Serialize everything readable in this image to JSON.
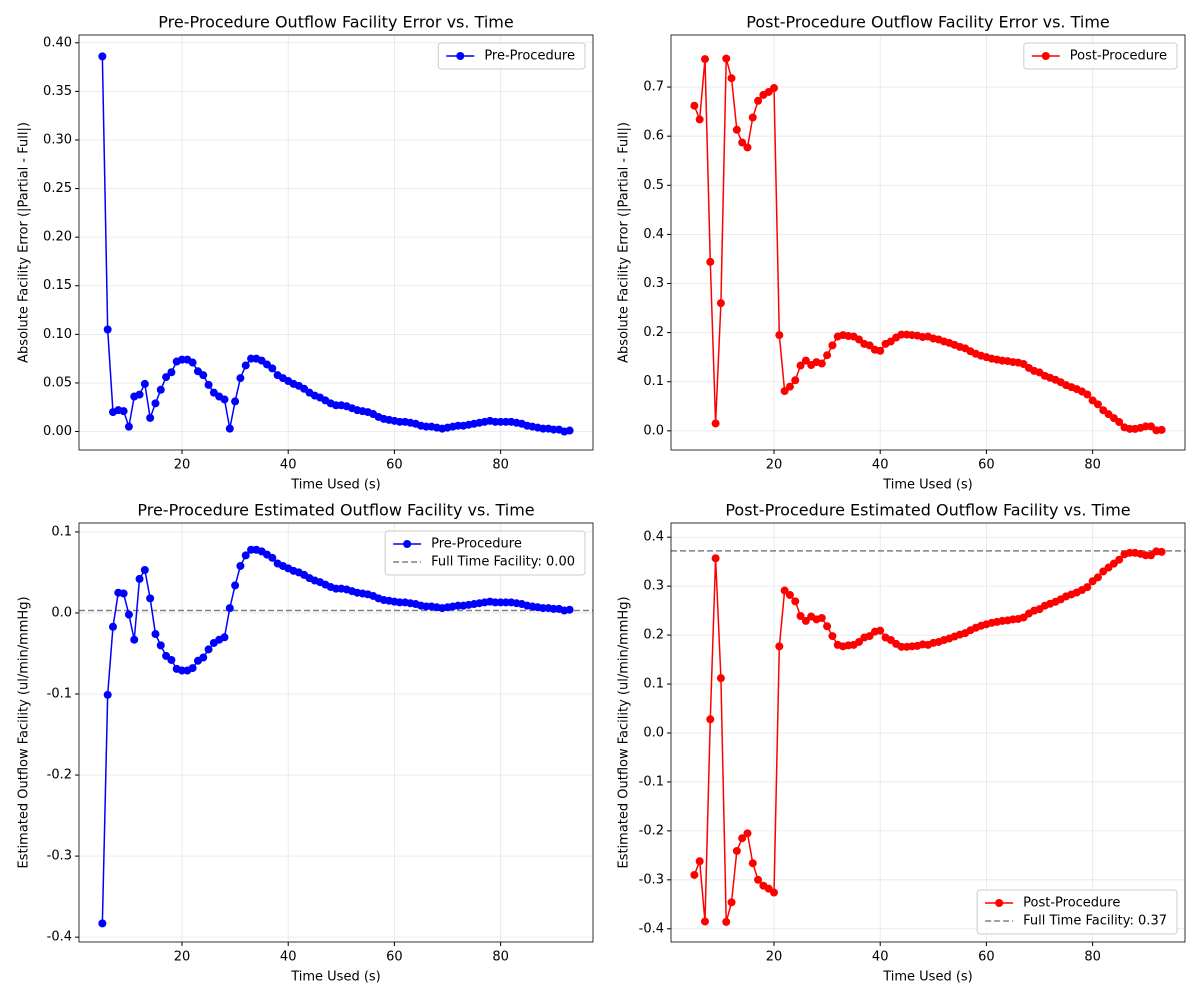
{
  "chart_data": [
    {
      "type": "line",
      "title": "Pre-Procedure Outflow Facility Error vs. Time",
      "x_label": "Time Used (s)",
      "y_label": "Absolute Facility Error (|Partial - Full|)",
      "x": [
        5,
        6,
        7,
        8,
        9,
        10,
        11,
        12,
        13,
        14,
        15,
        16,
        17,
        18,
        19,
        20,
        21,
        22,
        23,
        24,
        25,
        26,
        27,
        28,
        29,
        30,
        31,
        32,
        33,
        34,
        35,
        36,
        37,
        38,
        39,
        40,
        41,
        42,
        43,
        44,
        45,
        46,
        47,
        48,
        49,
        50,
        51,
        52,
        53,
        54,
        55,
        56,
        57,
        58,
        59,
        60,
        61,
        62,
        63,
        64,
        65,
        66,
        67,
        68,
        69,
        70,
        71,
        72,
        73,
        74,
        75,
        76,
        77,
        78,
        79,
        80,
        81,
        82,
        83,
        84,
        85,
        86,
        87,
        88,
        89,
        90,
        91,
        92,
        93
      ],
      "series": [
        {
          "name": "Pre-Procedure",
          "color": "#0000ff",
          "values": [
            0.386,
            0.105,
            0.02,
            0.022,
            0.021,
            0.005,
            0.036,
            0.038,
            0.049,
            0.014,
            0.029,
            0.043,
            0.056,
            0.061,
            0.072,
            0.074,
            0.074,
            0.071,
            0.062,
            0.058,
            0.048,
            0.04,
            0.036,
            0.033,
            0.003,
            0.031,
            0.055,
            0.068,
            0.075,
            0.075,
            0.073,
            0.069,
            0.065,
            0.058,
            0.055,
            0.052,
            0.049,
            0.047,
            0.044,
            0.04,
            0.037,
            0.035,
            0.032,
            0.029,
            0.027,
            0.027,
            0.026,
            0.024,
            0.022,
            0.021,
            0.02,
            0.018,
            0.015,
            0.013,
            0.012,
            0.011,
            0.01,
            0.01,
            0.009,
            0.008,
            0.006,
            0.005,
            0.005,
            0.004,
            0.003,
            0.004,
            0.005,
            0.006,
            0.006,
            0.007,
            0.008,
            0.009,
            0.01,
            0.011,
            0.01,
            0.01,
            0.01,
            0.01,
            0.009,
            0.008,
            0.006,
            0.005,
            0.004,
            0.003,
            0.003,
            0.002,
            0.002,
            0.0,
            0.001
          ]
        }
      ],
      "xlim": [
        0.6,
        97.4
      ],
      "ylim": [
        -0.019,
        0.408
      ],
      "xticks": [
        20,
        40,
        60,
        80
      ],
      "yticks": [
        {
          "value": 0,
          "label": "0.00"
        },
        0.05,
        {
          "value": 0.1,
          "label": "0.10"
        },
        0.15,
        {
          "value": 0.2,
          "label": "0.20"
        },
        0.25,
        {
          "value": 0.3,
          "label": "0.30"
        },
        0.35,
        {
          "value": 0.4,
          "label": "0.40"
        }
      ],
      "grid": true,
      "legend": "upper right"
    },
    {
      "type": "line",
      "title": "Post-Procedure Outflow Facility Error vs. Time",
      "x_label": "Time Used (s)",
      "y_label": "Absolute Facility Error (|Partial - Full|)",
      "x": [
        5,
        6,
        7,
        8,
        9,
        10,
        11,
        12,
        13,
        14,
        15,
        16,
        17,
        18,
        19,
        20,
        21,
        22,
        23,
        24,
        25,
        26,
        27,
        28,
        29,
        30,
        31,
        32,
        33,
        34,
        35,
        36,
        37,
        38,
        39,
        40,
        41,
        42,
        43,
        44,
        45,
        46,
        47,
        48,
        49,
        50,
        51,
        52,
        53,
        54,
        55,
        56,
        57,
        58,
        59,
        60,
        61,
        62,
        63,
        64,
        65,
        66,
        67,
        68,
        69,
        70,
        71,
        72,
        73,
        74,
        75,
        76,
        77,
        78,
        79,
        80,
        81,
        82,
        83,
        84,
        85,
        86,
        87,
        88,
        89,
        90,
        91,
        92,
        93
      ],
      "series": [
        {
          "name": "Post-Procedure",
          "color": "#ff0000",
          "values": [
            0.662,
            0.634,
            0.757,
            0.344,
            0.015,
            0.26,
            0.758,
            0.718,
            0.613,
            0.587,
            0.577,
            0.638,
            0.672,
            0.684,
            0.69,
            0.698,
            0.195,
            0.081,
            0.09,
            0.103,
            0.133,
            0.143,
            0.134,
            0.14,
            0.137,
            0.154,
            0.174,
            0.192,
            0.195,
            0.193,
            0.192,
            0.186,
            0.177,
            0.174,
            0.165,
            0.163,
            0.177,
            0.182,
            0.19,
            0.196,
            0.196,
            0.195,
            0.194,
            0.191,
            0.192,
            0.188,
            0.186,
            0.182,
            0.179,
            0.175,
            0.171,
            0.168,
            0.162,
            0.157,
            0.153,
            0.15,
            0.147,
            0.145,
            0.143,
            0.142,
            0.14,
            0.139,
            0.136,
            0.128,
            0.122,
            0.119,
            0.112,
            0.108,
            0.104,
            0.099,
            0.093,
            0.089,
            0.085,
            0.08,
            0.074,
            0.062,
            0.054,
            0.042,
            0.034,
            0.026,
            0.018,
            0.007,
            0.004,
            0.004,
            0.006,
            0.009,
            0.009,
            0.001,
            0.002
          ]
        }
      ],
      "xlim": [
        0.6,
        97.4
      ],
      "ylim": [
        -0.039,
        0.806
      ],
      "xticks": [
        20,
        40,
        60,
        80
      ],
      "yticks": [
        {
          "value": 0,
          "label": "0.0"
        },
        0.1,
        0.2,
        0.3,
        0.4,
        0.5,
        0.6,
        0.7
      ],
      "grid": true,
      "legend": "upper right"
    },
    {
      "type": "line",
      "title": "Pre-Procedure Estimated Outflow Facility vs. Time",
      "x_label": "Time Used (s)",
      "y_label": "Estimated Outflow Facility (ul/min/mmHg)",
      "x": [
        5,
        6,
        7,
        8,
        9,
        10,
        11,
        12,
        13,
        14,
        15,
        16,
        17,
        18,
        19,
        20,
        21,
        22,
        23,
        24,
        25,
        26,
        27,
        28,
        29,
        30,
        31,
        32,
        33,
        34,
        35,
        36,
        37,
        38,
        39,
        40,
        41,
        42,
        43,
        44,
        45,
        46,
        47,
        48,
        49,
        50,
        51,
        52,
        53,
        54,
        55,
        56,
        57,
        58,
        59,
        60,
        61,
        62,
        63,
        64,
        65,
        66,
        67,
        68,
        69,
        70,
        71,
        72,
        73,
        74,
        75,
        76,
        77,
        78,
        79,
        80,
        81,
        82,
        83,
        84,
        85,
        86,
        87,
        88,
        89,
        90,
        91,
        92,
        93
      ],
      "series": [
        {
          "name": "Pre-Procedure",
          "color": "#0000ff",
          "values": [
            -0.383,
            -0.101,
            -0.017,
            0.025,
            0.024,
            -0.002,
            -0.033,
            0.042,
            0.053,
            0.018,
            -0.026,
            -0.04,
            -0.053,
            -0.058,
            -0.069,
            -0.071,
            -0.071,
            -0.068,
            -0.059,
            -0.055,
            -0.045,
            -0.037,
            -0.033,
            -0.03,
            0.006,
            0.034,
            0.058,
            0.071,
            0.078,
            0.078,
            0.076,
            0.072,
            0.068,
            0.061,
            0.058,
            0.055,
            0.052,
            0.05,
            0.047,
            0.043,
            0.04,
            0.038,
            0.035,
            0.032,
            0.03,
            0.03,
            0.029,
            0.027,
            0.025,
            0.024,
            0.023,
            0.021,
            0.018,
            0.016,
            0.015,
            0.014,
            0.013,
            0.013,
            0.012,
            0.011,
            0.009,
            0.008,
            0.008,
            0.007,
            0.006,
            0.007,
            0.008,
            0.009,
            0.009,
            0.01,
            0.011,
            0.012,
            0.013,
            0.014,
            0.013,
            0.013,
            0.013,
            0.013,
            0.012,
            0.011,
            0.009,
            0.008,
            0.007,
            0.006,
            0.006,
            0.005,
            0.005,
            0.003,
            0.004
          ]
        }
      ],
      "reference_line": {
        "name": "Full Time Facility: 0.00",
        "value": 0.003,
        "color": "#808080"
      },
      "xlim": [
        0.6,
        97.4
      ],
      "ylim": [
        -0.406,
        0.111
      ],
      "xticks": [
        20,
        40,
        60,
        80
      ],
      "yticks": [
        -0.4,
        -0.3,
        -0.2,
        -0.1,
        {
          "value": 0,
          "label": "0.0"
        },
        0.1
      ],
      "grid": true,
      "legend": "upper right"
    },
    {
      "type": "line",
      "title": "Post-Procedure Estimated Outflow Facility vs. Time",
      "x_label": "Time Used (s)",
      "y_label": "Estimated Outflow Facility (ul/min/mmHg)",
      "x": [
        5,
        6,
        7,
        8,
        9,
        10,
        11,
        12,
        13,
        14,
        15,
        16,
        17,
        18,
        19,
        20,
        21,
        22,
        23,
        24,
        25,
        26,
        27,
        28,
        29,
        30,
        31,
        32,
        33,
        34,
        35,
        36,
        37,
        38,
        39,
        40,
        41,
        42,
        43,
        44,
        45,
        46,
        47,
        48,
        49,
        50,
        51,
        52,
        53,
        54,
        55,
        56,
        57,
        58,
        59,
        60,
        61,
        62,
        63,
        64,
        65,
        66,
        67,
        68,
        69,
        70,
        71,
        72,
        73,
        74,
        75,
        76,
        77,
        78,
        79,
        80,
        81,
        82,
        83,
        84,
        85,
        86,
        87,
        88,
        89,
        90,
        91,
        92,
        93
      ],
      "series": [
        {
          "name": "Post-Procedure",
          "color": "#ff0000",
          "values": [
            -0.29,
            -0.262,
            -0.385,
            0.028,
            0.357,
            0.112,
            -0.386,
            -0.346,
            -0.241,
            -0.215,
            -0.205,
            -0.266,
            -0.3,
            -0.312,
            -0.318,
            -0.326,
            0.177,
            0.291,
            0.282,
            0.269,
            0.239,
            0.229,
            0.238,
            0.232,
            0.235,
            0.218,
            0.198,
            0.18,
            0.177,
            0.179,
            0.18,
            0.186,
            0.195,
            0.198,
            0.207,
            0.209,
            0.195,
            0.19,
            0.182,
            0.176,
            0.176,
            0.177,
            0.178,
            0.181,
            0.18,
            0.184,
            0.186,
            0.19,
            0.193,
            0.197,
            0.201,
            0.204,
            0.21,
            0.215,
            0.219,
            0.222,
            0.225,
            0.227,
            0.229,
            0.23,
            0.232,
            0.233,
            0.236,
            0.244,
            0.25,
            0.253,
            0.26,
            0.264,
            0.268,
            0.273,
            0.279,
            0.283,
            0.287,
            0.292,
            0.298,
            0.31,
            0.318,
            0.33,
            0.338,
            0.346,
            0.354,
            0.365,
            0.368,
            0.368,
            0.366,
            0.363,
            0.363,
            0.371,
            0.37
          ]
        }
      ],
      "reference_line": {
        "name": "Full Time Facility: 0.37",
        "value": 0.372,
        "color": "#808080"
      },
      "xlim": [
        0.6,
        97.4
      ],
      "ylim": [
        -0.427,
        0.429
      ],
      "xticks": [
        20,
        40,
        60,
        80
      ],
      "yticks": [
        -0.4,
        -0.3,
        -0.2,
        -0.1,
        {
          "value": 0,
          "label": "0.0"
        },
        0.1,
        0.2,
        0.3,
        0.4
      ],
      "grid": true,
      "legend": "lower right"
    }
  ]
}
